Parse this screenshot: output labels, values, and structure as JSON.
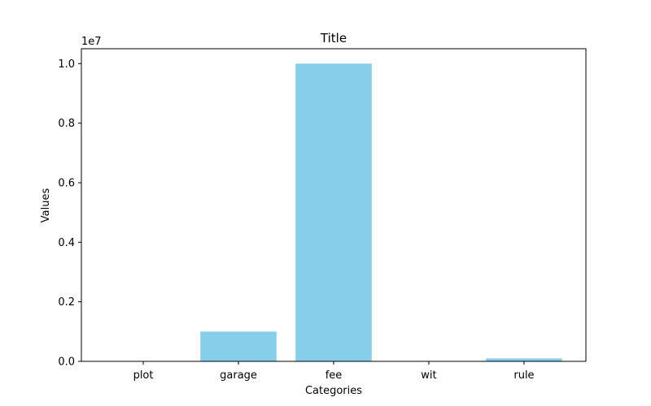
{
  "chart_data": {
    "type": "bar",
    "title": "Title",
    "xlabel": "Categories",
    "ylabel": "Values",
    "categories": [
      "plot",
      "garage",
      "fee",
      "wit",
      "rule"
    ],
    "values": [
      0,
      1000000,
      10000000,
      0,
      100000
    ],
    "ylim": [
      0,
      10500000
    ],
    "y_scale_multiplier_label": "1e7",
    "y_scale_multiplier": 10000000,
    "y_ticks": [
      0.0,
      0.2,
      0.4,
      0.6,
      0.8,
      1.0
    ],
    "y_tick_labels": [
      "0.0",
      "0.2",
      "0.4",
      "0.6",
      "0.8",
      "1.0"
    ],
    "bar_color": "#87ceeb",
    "grid": false,
    "legend": "none"
  }
}
